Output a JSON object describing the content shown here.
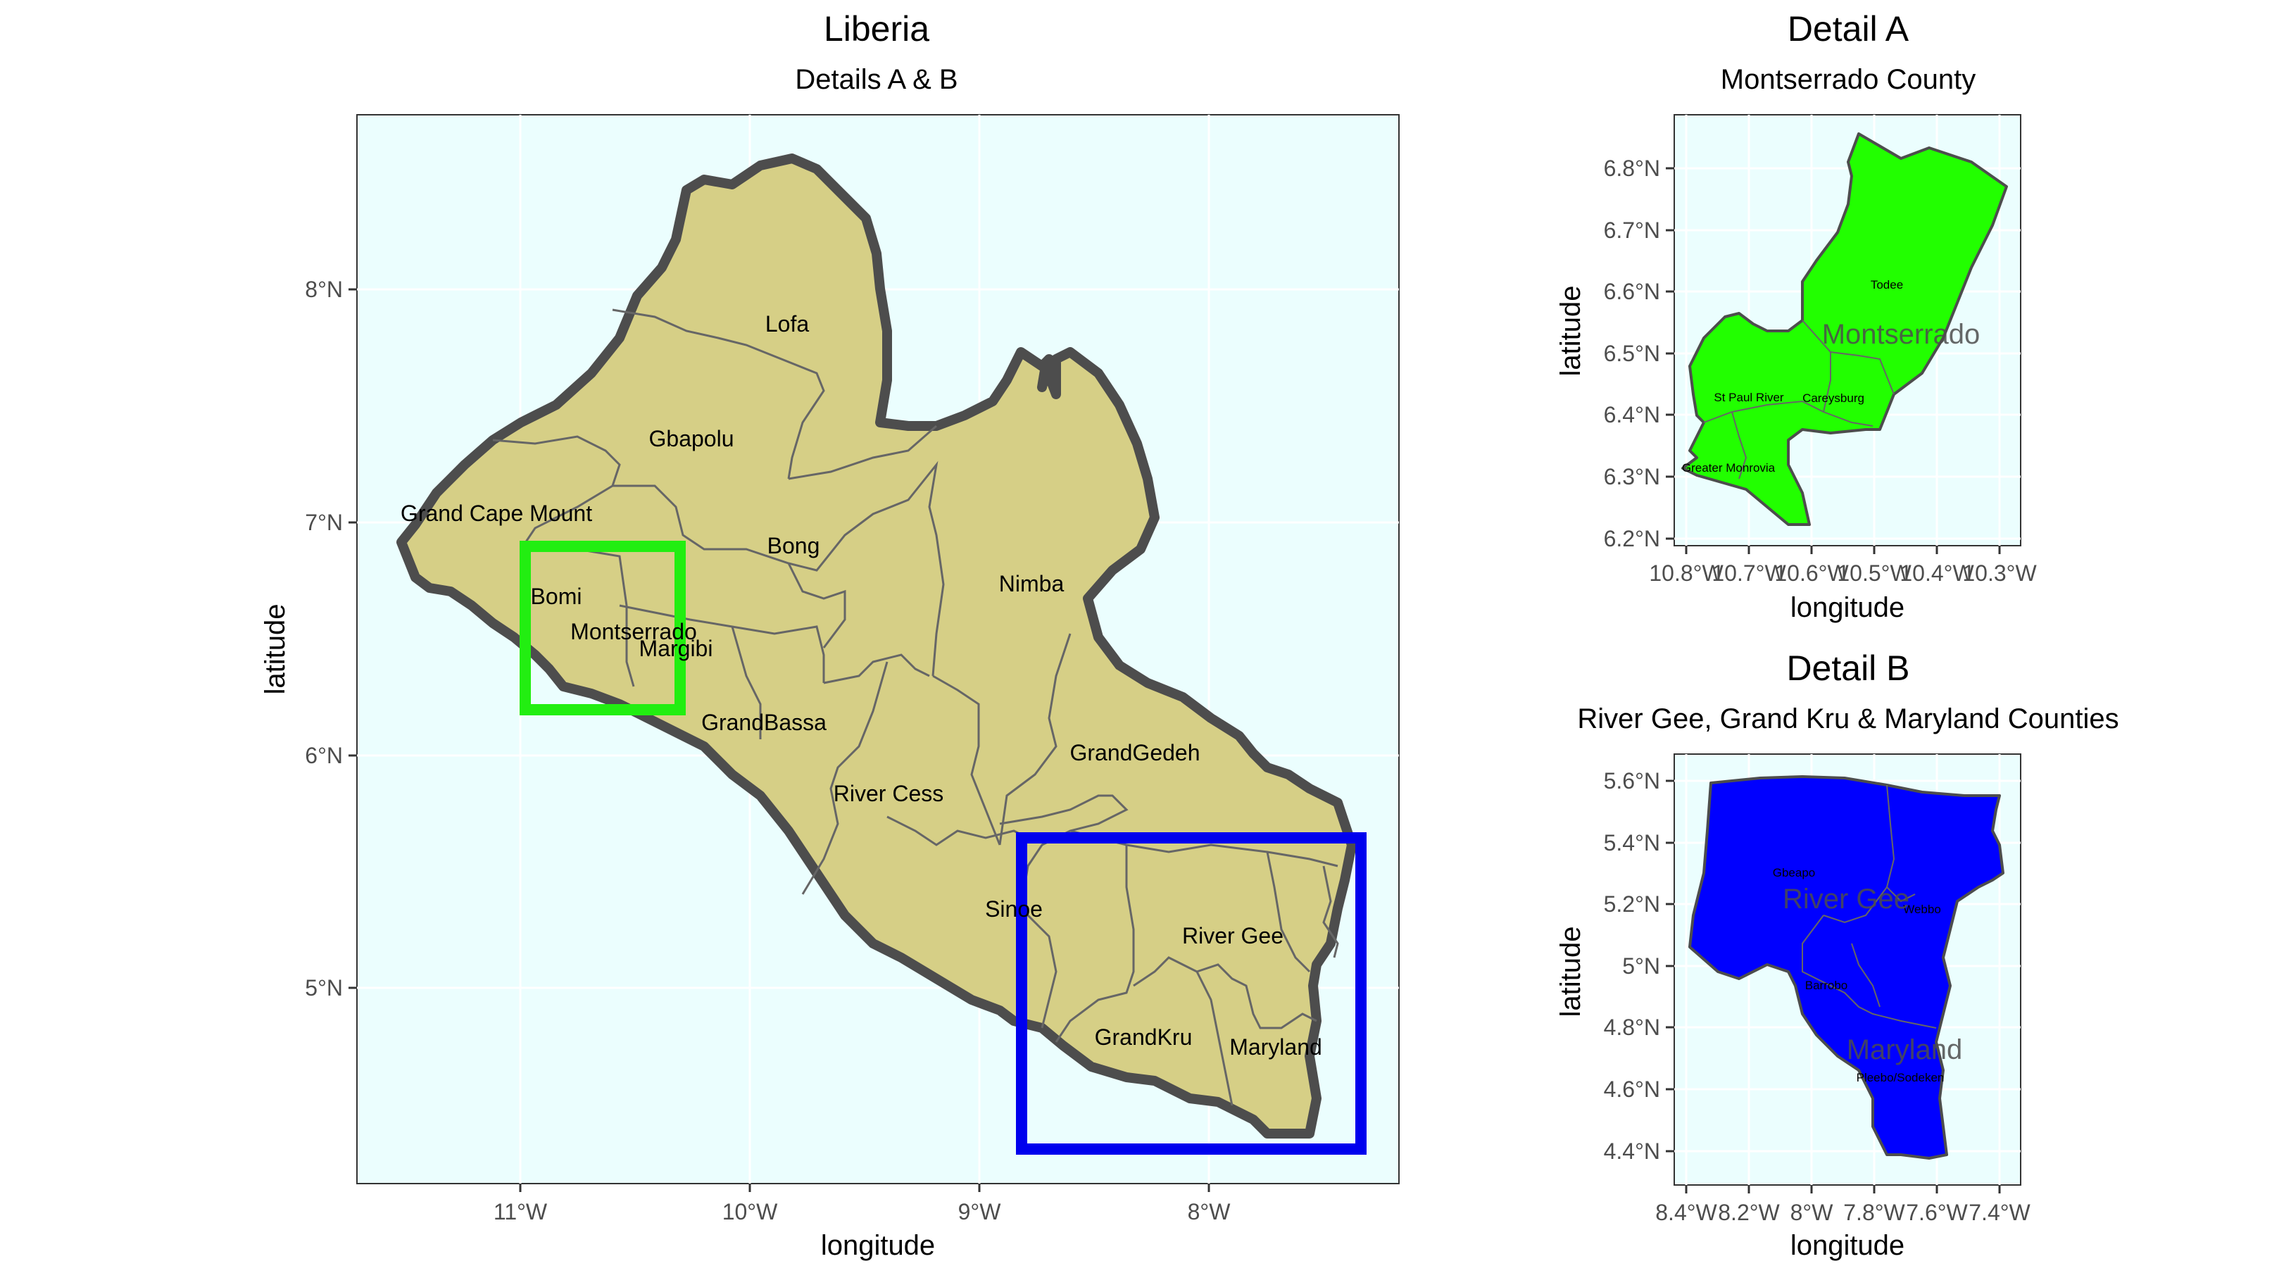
{
  "main_map": {
    "title": "Liberia",
    "subtitle": "Details A & B",
    "xlabel": "longitude",
    "ylabel": "latitude",
    "x_ticks": [
      "11°W",
      "10°W",
      "9°W",
      "8°W"
    ],
    "y_ticks": [
      "8°N",
      "7°N",
      "6°N",
      "5°N"
    ],
    "counties": [
      "Lofa",
      "Gbapolu",
      "Grand Cape Mount",
      "Bong",
      "Nimba",
      "Bomi",
      "Montserrado",
      "Margibi",
      "GrandBassa",
      "River Cess",
      "GrandGedeh",
      "Sinoe",
      "River Gee",
      "GrandKru",
      "Maryland"
    ],
    "detail_box_a_color": "#22ee11",
    "detail_box_b_color": "#0000ee",
    "land_color": "#d6cf86",
    "sea_color": "#ebfefe"
  },
  "detail_a": {
    "title": "Detail A",
    "subtitle": "Montserrado County",
    "xlabel": "longitude",
    "ylabel": "latitude",
    "x_ticks": [
      "10.8°W",
      "10.7°W",
      "10.6°W",
      "10.5°W",
      "10.4°W",
      "10.3°W"
    ],
    "y_ticks": [
      "6.8°N",
      "6.7°N",
      "6.6°N",
      "6.5°N",
      "6.4°N",
      "6.3°N",
      "6.2°N"
    ],
    "region_label": "Montserrado",
    "district_labels": [
      "Todee",
      "St Paul River",
      "Careysburg",
      "Greater Monrovia"
    ],
    "fill_color": "#22ff00"
  },
  "detail_b": {
    "title": "Detail B",
    "subtitle": "River Gee, Grand Kru & Maryland Counties",
    "xlabel": "longitude",
    "ylabel": "latitude",
    "x_ticks": [
      "8.4°W",
      "8.2°W",
      "8°W",
      "7.8°W",
      "7.6°W",
      "7.4°W"
    ],
    "y_ticks": [
      "5.6°N",
      "5.4°N",
      "5.2°N",
      "5°N",
      "4.8°N",
      "4.6°N",
      "4.4°N"
    ],
    "region_labels": [
      "River Gee",
      "Maryland"
    ],
    "district_labels": [
      "Gbeapo",
      "Webbo",
      "Barrobo",
      "Pleebo/Sodeken"
    ],
    "fill_color": "#0000ff"
  }
}
